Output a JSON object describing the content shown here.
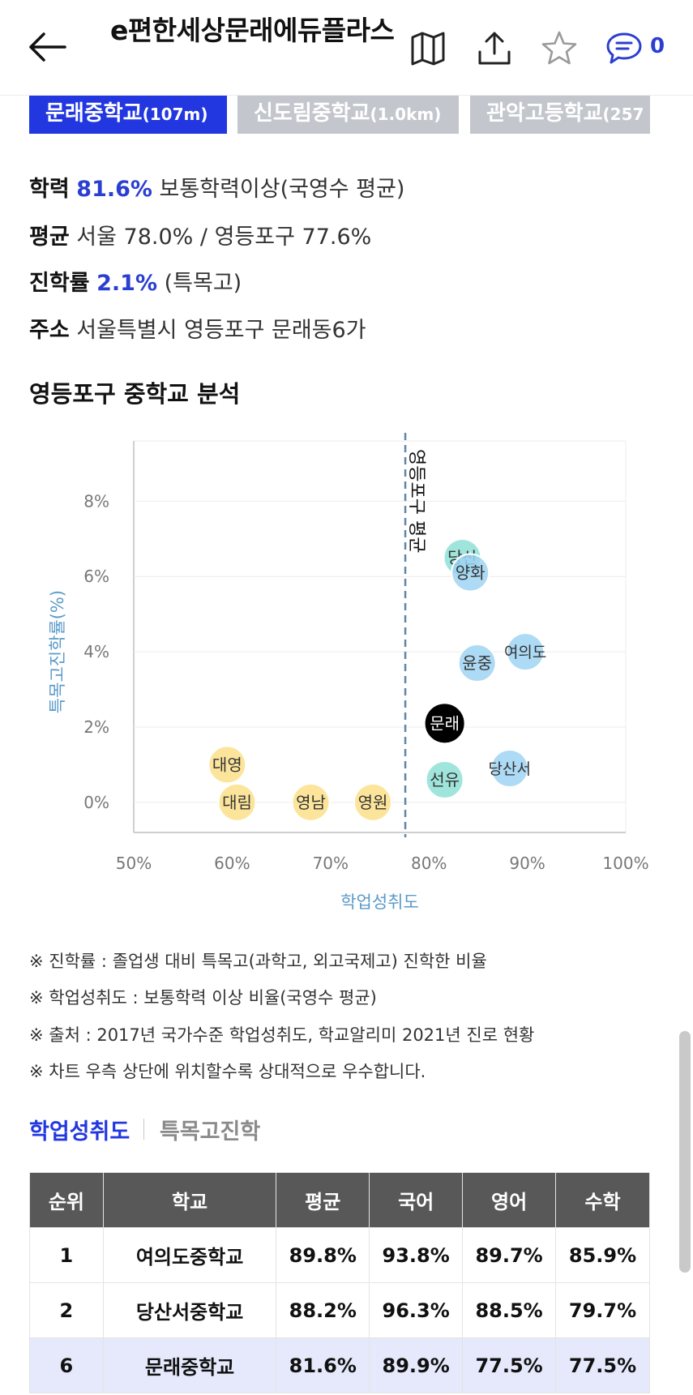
{
  "header": {
    "title": "e편한세상문래에듀플라스",
    "comment_count": "0",
    "icons": [
      "back-arrow-icon",
      "map-icon",
      "share-icon",
      "star-icon",
      "comment-icon"
    ]
  },
  "school_tabs": [
    {
      "name": "문래중학교",
      "dist": "(107m)",
      "active": true
    },
    {
      "name": "신도림중학교",
      "dist": "(1.0km)",
      "active": false
    },
    {
      "name": "관악고등학교",
      "dist": "(257",
      "active": false
    }
  ],
  "info": {
    "achievement_key": "학력",
    "achievement_value": "81.6%",
    "achievement_desc": "보통학력이상(국영수 평균)",
    "average_key": "평균",
    "average_value": "서울 78.0% / 영등포구 77.6%",
    "advance_key": "진학률",
    "advance_value": "2.1%",
    "advance_desc": "(특목고)",
    "address_key": "주소",
    "address_value": "서울특별시 영등포구 문래동6가"
  },
  "section_title": "영등포구 중학교 분석",
  "chart_data": {
    "type": "scatter",
    "xlabel": "학업성취도",
    "ylabel": "특목고진학률(%)",
    "xlim": [
      50,
      100
    ],
    "ylim": [
      -0.8,
      9.6
    ],
    "xticks": [
      "50%",
      "60%",
      "70%",
      "80%",
      "90%",
      "100%"
    ],
    "yticks": [
      "0%",
      "2%",
      "4%",
      "6%",
      "8%"
    ],
    "reference_line": {
      "x": 77.6,
      "label": "영등포구 평균"
    },
    "points": [
      {
        "name": "대영",
        "x": 59.5,
        "y": 1.0,
        "color": "#fce08a"
      },
      {
        "name": "대림",
        "x": 60.5,
        "y": 0.0,
        "color": "#fce08a"
      },
      {
        "name": "영남",
        "x": 68.0,
        "y": 0.0,
        "color": "#fce08a"
      },
      {
        "name": "영원",
        "x": 74.3,
        "y": 0.0,
        "color": "#fce08a"
      },
      {
        "name": "선유",
        "x": 81.6,
        "y": 0.6,
        "color": "#8fe0d6"
      },
      {
        "name": "문래",
        "x": 81.6,
        "y": 2.1,
        "color": "#000000"
      },
      {
        "name": "당산",
        "x": 83.4,
        "y": 6.5,
        "color": "#8fe0d6"
      },
      {
        "name": "양화",
        "x": 84.2,
        "y": 6.1,
        "color": "#9fd4f2"
      },
      {
        "name": "윤중",
        "x": 84.9,
        "y": 3.7,
        "color": "#9fd4f2"
      },
      {
        "name": "당산서",
        "x": 88.2,
        "y": 0.9,
        "color": "#9fd4f2"
      },
      {
        "name": "여의도",
        "x": 89.8,
        "y": 4.0,
        "color": "#9fd4f2"
      }
    ]
  },
  "notes": [
    "※ 진학률 : 졸업생 대비 특목고(과학고, 외고국제고) 진학한 비율",
    "※ 학업성취도 : 보통학력 이상 비율(국영수 평균)",
    "※ 출처 : 2017년 국가수준 학업성취도, 학교알리미 2021년 진로 현황",
    "※ 차트 우측 상단에 위치할수록 상대적으로 우수합니다."
  ],
  "sub_tabs": [
    {
      "label": "학업성취도",
      "active": true
    },
    {
      "label": "특목고진학",
      "active": false
    }
  ],
  "table": {
    "headers": [
      "순위",
      "학교",
      "평균",
      "국어",
      "영어",
      "수학"
    ],
    "rows": [
      [
        "1",
        "여의도중학교",
        "89.8%",
        "93.8%",
        "89.7%",
        "85.9%"
      ],
      [
        "2",
        "당산서중학교",
        "88.2%",
        "96.3%",
        "88.5%",
        "79.7%"
      ],
      [
        "6",
        "문래중학교",
        "81.6%",
        "89.9%",
        "77.5%",
        "77.5%"
      ]
    ],
    "highlight_row": 2
  },
  "colors": {
    "accent": "#2237e0",
    "inactive_tab": "#c3c6cc",
    "table_header": "#585858",
    "highlight_row": "#e5e9fb"
  }
}
